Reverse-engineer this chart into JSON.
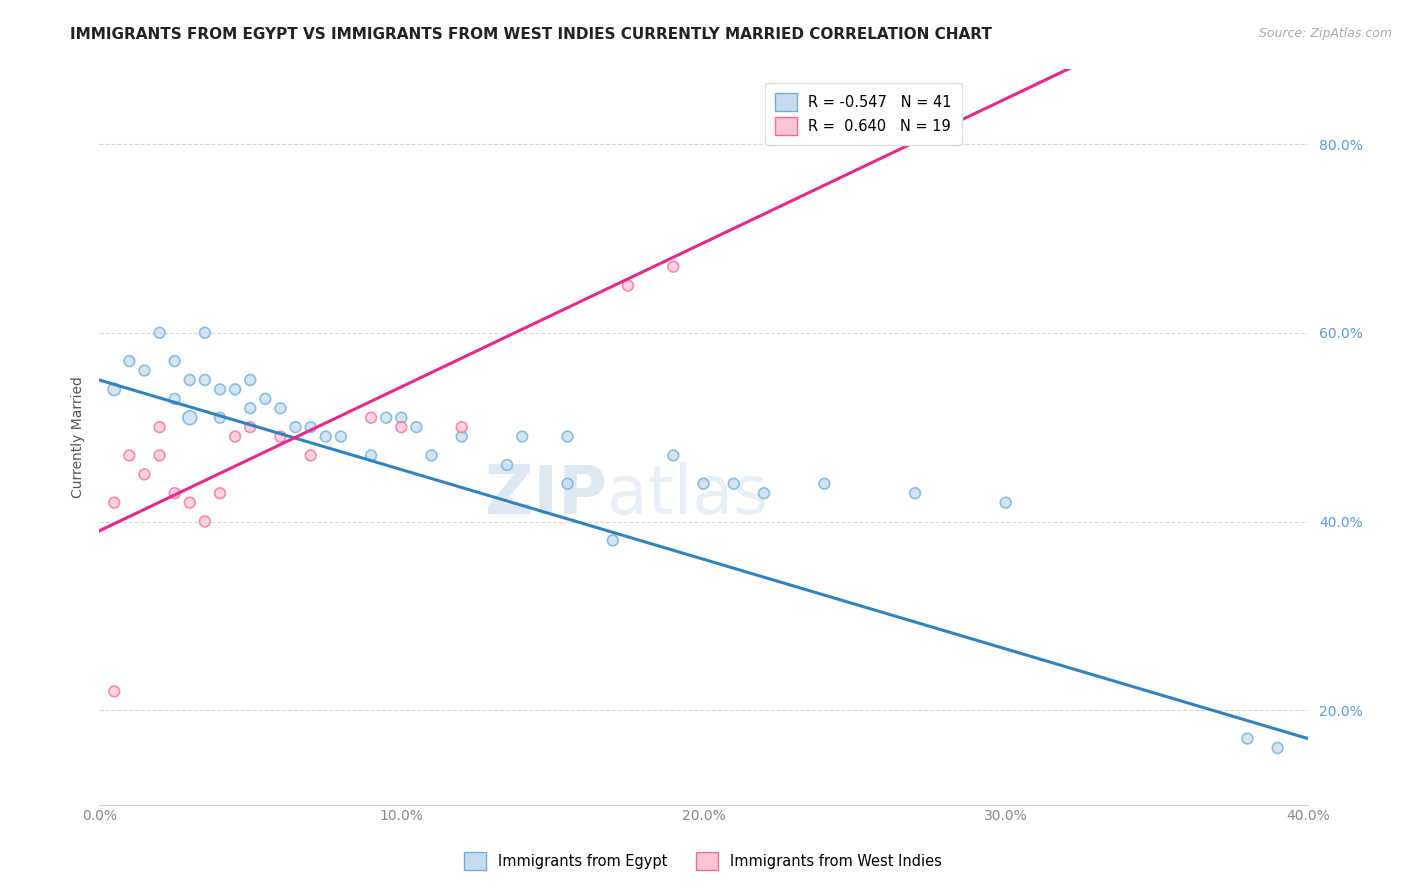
{
  "title": "IMMIGRANTS FROM EGYPT VS IMMIGRANTS FROM WEST INDIES CURRENTLY MARRIED CORRELATION CHART",
  "source_text": "Source: ZipAtlas.com",
  "ylabel": "Currently Married",
  "xlim": [
    0.0,
    0.4
  ],
  "ylim": [
    0.1,
    0.88
  ],
  "xtick_labels": [
    "0.0%",
    "",
    "10.0%",
    "",
    "20.0%",
    "",
    "30.0%",
    "",
    "40.0%"
  ],
  "xtick_vals": [
    0.0,
    0.05,
    0.1,
    0.15,
    0.2,
    0.25,
    0.3,
    0.35,
    0.4
  ],
  "ytick_labels": [
    "20.0%",
    "40.0%",
    "60.0%",
    "80.0%"
  ],
  "ytick_vals": [
    0.2,
    0.4,
    0.6,
    0.8
  ],
  "grid_color": "#cccccc",
  "blue_fill": "#c6dbef",
  "blue_edge": "#6baed6",
  "pink_fill": "#fcc5d4",
  "pink_edge": "#f768a1",
  "trend_blue": "#3182bd",
  "trend_pink": "#e7298a",
  "trend_dashed_color": "#f7a8c4",
  "ytick_color": "#5b9bd5",
  "R_blue": -0.547,
  "N_blue": 41,
  "R_pink": 0.64,
  "N_pink": 19,
  "legend_label_blue": "Immigrants from Egypt",
  "legend_label_pink": "Immigrants from West Indies",
  "blue_x": [
    0.005,
    0.01,
    0.015,
    0.02,
    0.025,
    0.025,
    0.03,
    0.03,
    0.035,
    0.035,
    0.04,
    0.04,
    0.045,
    0.05,
    0.05,
    0.055,
    0.06,
    0.065,
    0.07,
    0.075,
    0.08,
    0.09,
    0.095,
    0.1,
    0.105,
    0.11,
    0.12,
    0.135,
    0.14,
    0.155,
    0.17,
    0.19,
    0.2,
    0.21,
    0.22,
    0.24,
    0.27,
    0.155,
    0.3,
    0.38,
    0.39
  ],
  "blue_y": [
    0.54,
    0.57,
    0.56,
    0.6,
    0.53,
    0.57,
    0.51,
    0.55,
    0.55,
    0.6,
    0.51,
    0.54,
    0.54,
    0.52,
    0.55,
    0.53,
    0.52,
    0.5,
    0.5,
    0.49,
    0.49,
    0.47,
    0.51,
    0.51,
    0.5,
    0.47,
    0.49,
    0.46,
    0.49,
    0.44,
    0.38,
    0.47,
    0.44,
    0.44,
    0.43,
    0.44,
    0.43,
    0.49,
    0.42,
    0.17,
    0.16
  ],
  "blue_sizes": [
    80,
    60,
    60,
    60,
    60,
    60,
    100,
    60,
    60,
    60,
    60,
    60,
    60,
    60,
    60,
    60,
    60,
    60,
    60,
    60,
    60,
    60,
    60,
    60,
    60,
    60,
    60,
    60,
    60,
    60,
    60,
    60,
    60,
    60,
    60,
    60,
    60,
    60,
    60,
    60,
    60
  ],
  "pink_x": [
    0.005,
    0.01,
    0.015,
    0.02,
    0.02,
    0.025,
    0.03,
    0.035,
    0.04,
    0.045,
    0.05,
    0.06,
    0.07,
    0.09,
    0.1,
    0.12,
    0.175,
    0.19,
    0.005
  ],
  "pink_y": [
    0.42,
    0.47,
    0.45,
    0.47,
    0.5,
    0.43,
    0.42,
    0.4,
    0.43,
    0.49,
    0.5,
    0.49,
    0.47,
    0.51,
    0.5,
    0.5,
    0.65,
    0.67,
    0.22
  ],
  "pink_sizes": [
    60,
    60,
    60,
    60,
    60,
    60,
    60,
    60,
    60,
    60,
    60,
    60,
    60,
    60,
    60,
    60,
    60,
    60,
    60
  ],
  "watermark_left": "ZIP",
  "watermark_right": "atlas",
  "title_fontsize": 11,
  "axis_fontsize": 10,
  "tick_fontsize": 10,
  "source_fontsize": 9
}
